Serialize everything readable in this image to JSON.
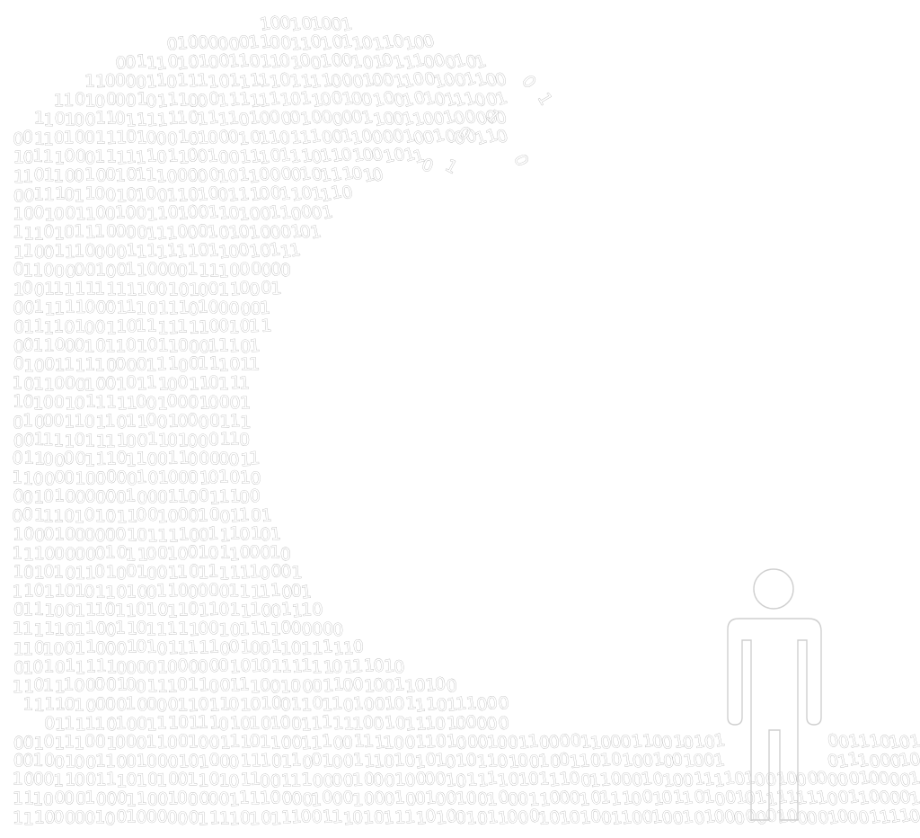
{
  "illustration": {
    "wave_digits": [
      "0",
      "1"
    ],
    "colors": {
      "background": "#ffffff",
      "digit_outline": "#9a9a9a",
      "figure_outline": "#cfcfcf"
    },
    "figure": "standing-person-outline"
  }
}
